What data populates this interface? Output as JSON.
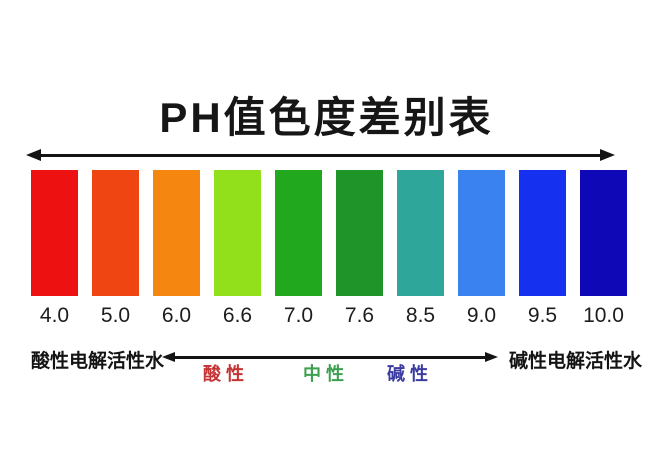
{
  "page": {
    "background": "#ffffff"
  },
  "chart_data": {
    "type": "color-scale",
    "title": "PH值色度差别表",
    "categories": [
      "4.0",
      "5.0",
      "6.0",
      "6.6",
      "7.0",
      "7.6",
      "8.5",
      "9.0",
      "9.5",
      "10.0"
    ],
    "swatch_colors": [
      "#ee1111",
      "#ef4513",
      "#f5860f",
      "#91e01b",
      "#22a81e",
      "#1f9428",
      "#2ea699",
      "#3982f0",
      "#1630f0",
      "#0e08b6"
    ],
    "xlabel": "",
    "ylabel": "",
    "legend": "none",
    "axis": {
      "left_label": "酸性电解活性水",
      "right_label": "碱性电解活性水",
      "zones": [
        {
          "label": "酸 性",
          "color": "#c53434"
        },
        {
          "label": "中 性",
          "color": "#3da04e"
        },
        {
          "label": "碱 性",
          "color": "#3c3ba2"
        }
      ]
    }
  }
}
